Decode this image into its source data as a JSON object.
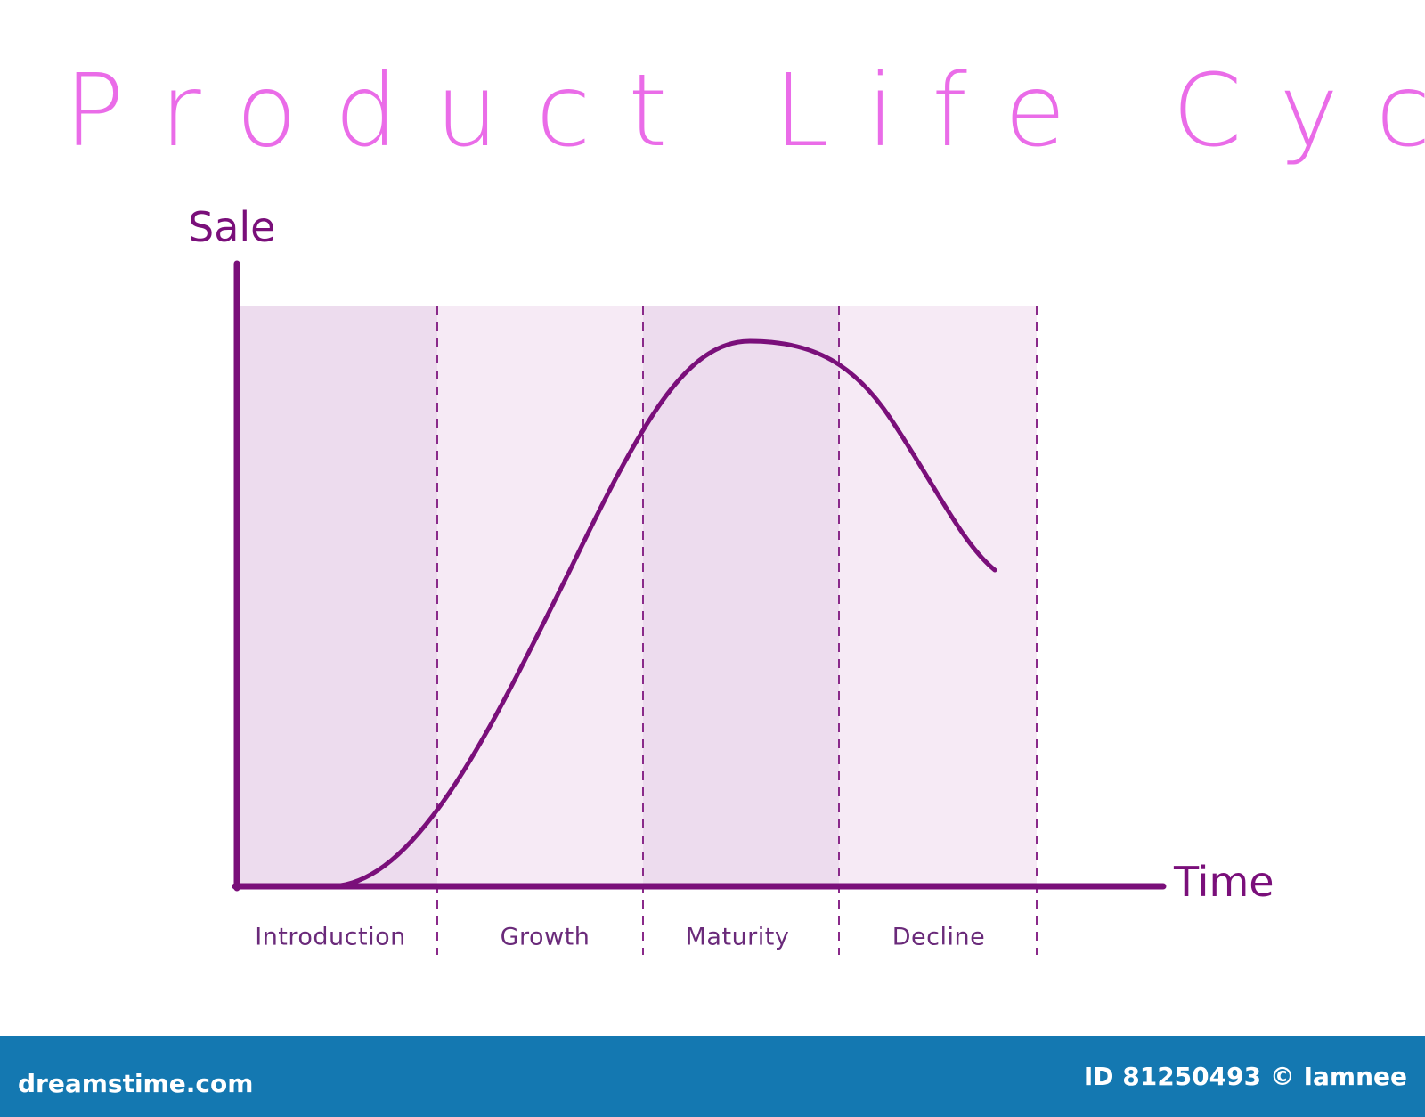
{
  "header": {
    "title": "Product Life Cycle"
  },
  "axes": {
    "y_label": "Sale",
    "x_label": "Time"
  },
  "stages": [
    "Introduction",
    "Growth",
    "Maturity",
    "Decline"
  ],
  "footer": {
    "brand": "dreamstime.com",
    "credit": "ID 81250493 © Iamnee"
  }
}
